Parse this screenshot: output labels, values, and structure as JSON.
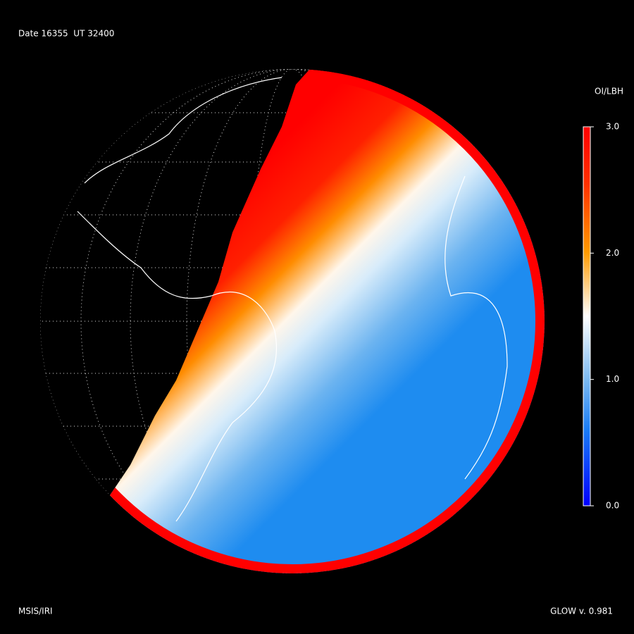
{
  "header": {
    "title": "Date 16355  UT 32400"
  },
  "colorbar": {
    "title": "OI/LBH",
    "lim": [
      0,
      3
    ],
    "ticks": [
      {
        "value": 3,
        "label": "3.0"
      },
      {
        "value": 2,
        "label": "2.0"
      },
      {
        "value": 1,
        "label": "1.0"
      },
      {
        "value": 0,
        "label": "0.0"
      }
    ]
  },
  "footer": {
    "left": "MSIS/IRI",
    "right": "GLOW v. 0.981"
  }
}
